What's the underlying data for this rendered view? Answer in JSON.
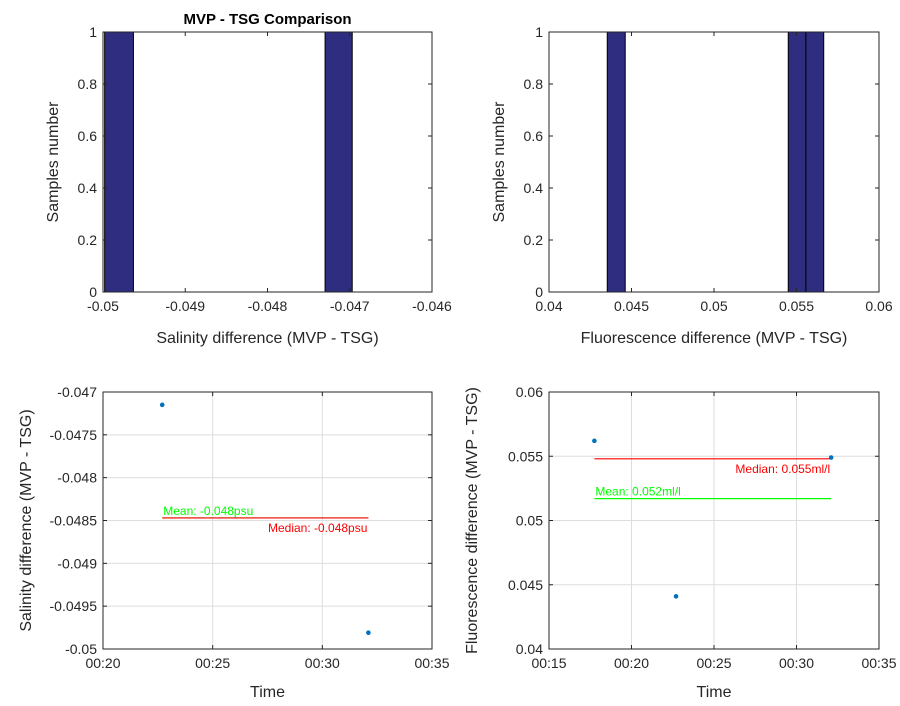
{
  "chart_data": [
    {
      "type": "bar",
      "title": "MVP - TSG Comparison",
      "xlabel": "Salinity difference (MVP - TSG)",
      "ylabel": "Samples number",
      "xlim": [
        -0.05,
        -0.046
      ],
      "ylim": [
        0,
        1
      ],
      "xticks": [
        "-0.05",
        "-0.049",
        "-0.048",
        "-0.047",
        "-0.046"
      ],
      "xtick_values": [
        -0.05,
        -0.049,
        -0.048,
        -0.047,
        -0.046
      ],
      "yticks": [
        "0",
        "0.2",
        "0.4",
        "0.6",
        "0.8",
        "1"
      ],
      "ytick_values": [
        0,
        0.2,
        0.4,
        0.6,
        0.8,
        1
      ],
      "grid": false,
      "bar_color": "#2e2d7f",
      "bars": [
        {
          "x0": -0.04998,
          "x1": -0.04963,
          "value": 1
        },
        {
          "x0": -0.0473,
          "x1": -0.04697,
          "value": 1
        }
      ]
    },
    {
      "type": "bar",
      "title": "",
      "xlabel": "Fluorescence difference (MVP - TSG)",
      "ylabel": "Samples number",
      "xlim": [
        0.04,
        0.06
      ],
      "ylim": [
        0,
        1
      ],
      "xticks": [
        "0.04",
        "0.045",
        "0.05",
        "0.055",
        "0.06"
      ],
      "xtick_values": [
        0.04,
        0.045,
        0.05,
        0.055,
        0.06
      ],
      "yticks": [
        "0",
        "0.2",
        "0.4",
        "0.6",
        "0.8",
        "1"
      ],
      "ytick_values": [
        0,
        0.2,
        0.4,
        0.6,
        0.8,
        1
      ],
      "grid": false,
      "bar_color": "#2e2d7f",
      "bars": [
        {
          "x0": 0.04353,
          "x1": 0.04462,
          "value": 1
        },
        {
          "x0": 0.0545,
          "x1": 0.05557,
          "value": 1
        },
        {
          "x0": 0.05557,
          "x1": 0.05665,
          "value": 1
        }
      ]
    },
    {
      "type": "scatter",
      "title": "",
      "xlabel": "Time",
      "ylabel": "Salinity difference (MVP - TSG)",
      "xlim": [
        "00:20",
        "00:35"
      ],
      "ylim": [
        -0.05,
        -0.047
      ],
      "xticks": [
        "00:20",
        "00:25",
        "00:30",
        "00:35"
      ],
      "xtick_values": [
        "00:20",
        "00:25",
        "00:30",
        "00:35"
      ],
      "yticks": [
        "-0.05",
        "-0.0495",
        "-0.049",
        "-0.0485",
        "-0.048",
        "-0.0475",
        "-0.047"
      ],
      "ytick_values": [
        -0.05,
        -0.0495,
        -0.049,
        -0.0485,
        -0.048,
        -0.0475,
        -0.047
      ],
      "grid": true,
      "point_color": "#0072bd",
      "points": [
        {
          "x": "00:22:42",
          "y": -0.04715
        },
        {
          "x": "00:32:06",
          "y": -0.04981
        }
      ],
      "lines": [
        {
          "label": "Mean: -0.048psu",
          "color": "#00ff00",
          "y": -0.04847,
          "x0": "00:22:42",
          "x1": "00:32:06",
          "label_side": "above-left"
        },
        {
          "label": "Median: -0.048psu",
          "color": "#ff0000",
          "y": -0.04847,
          "x0": "00:22:42",
          "x1": "00:32:06",
          "label_side": "below-right"
        }
      ]
    },
    {
      "type": "scatter",
      "title": "",
      "xlabel": "Time",
      "ylabel": "Fluorescence difference (MVP - TSG)",
      "xlim": [
        "00:15",
        "00:35"
      ],
      "ylim": [
        0.04,
        0.06
      ],
      "xticks": [
        "00:15",
        "00:20",
        "00:25",
        "00:30",
        "00:35"
      ],
      "xtick_values": [
        "00:15",
        "00:20",
        "00:25",
        "00:30",
        "00:35"
      ],
      "yticks": [
        "0.04",
        "0.045",
        "0.05",
        "0.055",
        "0.06"
      ],
      "ytick_values": [
        0.04,
        0.045,
        0.05,
        0.055,
        0.06
      ],
      "grid": true,
      "point_color": "#0072bd",
      "points": [
        {
          "x": "00:17:45",
          "y": 0.0562
        },
        {
          "x": "00:22:42",
          "y": 0.0441
        },
        {
          "x": "00:32:06",
          "y": 0.0549
        }
      ],
      "lines": [
        {
          "label": "Median: 0.055ml/l",
          "color": "#ff0000",
          "y": 0.0548,
          "x0": "00:17:45",
          "x1": "00:32:06",
          "label_side": "below-right"
        },
        {
          "label": "Mean: 0.052ml/l",
          "color": "#00ff00",
          "y": 0.0517,
          "x0": "00:17:45",
          "x1": "00:32:06",
          "label_side": "above-left"
        }
      ]
    }
  ]
}
